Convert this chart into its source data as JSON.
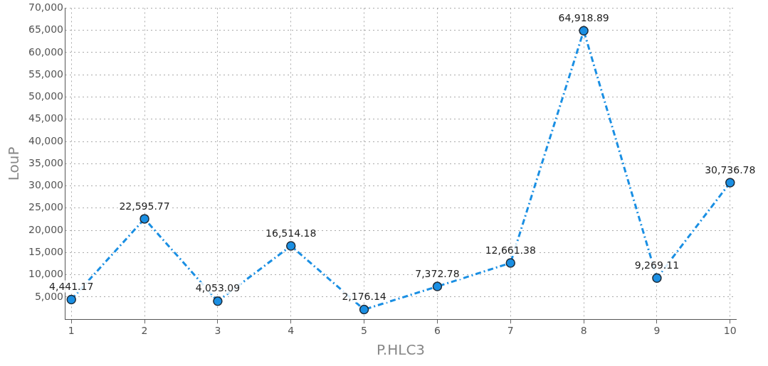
{
  "chart_data": {
    "type": "line",
    "xlabel": "P.HLC3",
    "ylabel": "LouP",
    "x": [
      1,
      2,
      3,
      4,
      5,
      6,
      7,
      8,
      9,
      10
    ],
    "series": [
      {
        "color": "#1a8fe3",
        "values": [
          4441.17,
          22595.77,
          4053.09,
          16514.18,
          2176.14,
          7372.78,
          12661.38,
          64918.89,
          9269.11,
          30736.78
        ],
        "value_labels": [
          "4,441.17",
          "22,595.77",
          "4,053.09",
          "16,514.18",
          "2,176.14",
          "7,372.78",
          "12,661.38",
          "64,918.89",
          "9,269.11",
          "30,736.78"
        ]
      }
    ],
    "xlim": [
      0.92,
      10.08
    ],
    "xticks": [
      1,
      2,
      3,
      4,
      5,
      6,
      7,
      8,
      9,
      10
    ],
    "ylim": [
      0,
      70000
    ],
    "yticks": [
      {
        "value": 5000,
        "label": "5,000"
      },
      {
        "value": 10000,
        "label": "10,000"
      },
      {
        "value": 15000,
        "label": "15,000"
      },
      {
        "value": 20000,
        "label": "20,000"
      },
      {
        "value": 25000,
        "label": "25,000"
      },
      {
        "value": 30000,
        "label": "30,000"
      },
      {
        "value": 35000,
        "label": "35,000"
      },
      {
        "value": 40000,
        "label": "40,000"
      },
      {
        "value": 45000,
        "label": "45,000"
      },
      {
        "value": 50000,
        "label": "50,000"
      },
      {
        "value": 55000,
        "label": "55,000"
      },
      {
        "value": 60000,
        "label": "60,000"
      },
      {
        "value": 65000,
        "label": "65,000"
      },
      {
        "value": 70000,
        "label": "70,000"
      }
    ],
    "grid": true,
    "marker": "circle",
    "line_style": "dashed"
  }
}
